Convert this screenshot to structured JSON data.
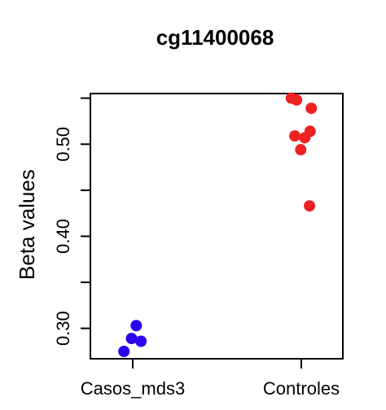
{
  "chart_data": {
    "type": "scatter",
    "title": "cg11400068",
    "xlabel": "",
    "ylabel": "Beta values",
    "categories": [
      "Casos_mds3",
      "Controles"
    ],
    "ylim": [
      0.267,
      0.555
    ],
    "yticks": [
      0.3,
      0.4,
      0.5
    ],
    "ytick_labels": [
      "0.30",
      "0.40",
      "0.50"
    ],
    "grid": false,
    "legend": "none",
    "series": [
      {
        "category": "Casos_mds3",
        "color": "#2a00ee",
        "points": [
          {
            "jitter": 0.12,
            "y": 0.303
          },
          {
            "jitter": -0.04,
            "y": 0.289
          },
          {
            "jitter": 0.28,
            "y": 0.286
          },
          {
            "jitter": -0.3,
            "y": 0.275
          }
        ]
      },
      {
        "category": "Controles",
        "color": "#ee2222",
        "points": [
          {
            "jitter": -0.34,
            "y": 0.55
          },
          {
            "jitter": -0.16,
            "y": 0.548
          },
          {
            "jitter": 0.34,
            "y": 0.539
          },
          {
            "jitter": 0.3,
            "y": 0.514
          },
          {
            "jitter": -0.22,
            "y": 0.509
          },
          {
            "jitter": 0.12,
            "y": 0.507
          },
          {
            "jitter": -0.02,
            "y": 0.494
          },
          {
            "jitter": 0.28,
            "y": 0.433
          }
        ]
      }
    ]
  }
}
